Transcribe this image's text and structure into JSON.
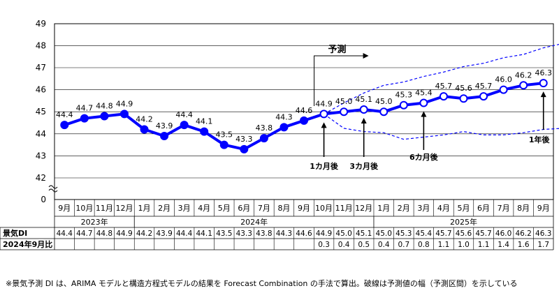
{
  "chart_data": {
    "type": "line",
    "title": "",
    "xlabel": "",
    "ylabel": "",
    "ylim": [
      42,
      49
    ],
    "y_break_label": "0",
    "yticks": [
      42,
      43,
      44,
      45,
      46,
      47,
      48,
      49
    ],
    "grid": true,
    "months": [
      "9月",
      "10月",
      "11月",
      "12月",
      "1月",
      "2月",
      "3月",
      "4月",
      "5月",
      "6月",
      "7月",
      "8月",
      "9月",
      "10月",
      "11月",
      "12月",
      "1月",
      "2月",
      "3月",
      "4月",
      "5月",
      "6月",
      "7月",
      "8月",
      "9月"
    ],
    "year_groups": [
      {
        "label": "2023年",
        "count": 4
      },
      {
        "label": "2024年",
        "count": 12
      },
      {
        "label": "2025年",
        "count": 9
      }
    ],
    "series": [
      {
        "name": "景気DI",
        "values": [
          44.4,
          44.7,
          44.8,
          44.9,
          44.2,
          43.9,
          44.4,
          44.1,
          43.5,
          43.3,
          43.8,
          44.3,
          44.6,
          44.9,
          45.0,
          45.1,
          45.0,
          45.3,
          45.4,
          45.7,
          45.6,
          45.7,
          46.0,
          46.2,
          46.3
        ],
        "forecast_start_index": 13
      }
    ],
    "interval_upper": [
      44.9,
      45.4,
      45.85,
      46.2,
      46.35,
      46.6,
      46.8,
      47.05,
      47.2,
      47.45,
      47.6,
      47.9,
      48.1,
      48.4
    ],
    "interval_lower": [
      44.9,
      44.25,
      44.1,
      44.05,
      43.75,
      43.85,
      43.95,
      44.1,
      43.95,
      43.95,
      44.05,
      44.2,
      44.25,
      44.3
    ],
    "point_labels": [
      "44.4",
      "44.7",
      "44.8",
      "44.9",
      "44.2",
      "43.9",
      "44.4",
      "44.1",
      "43.5",
      "43.3",
      "43.8",
      "44.3",
      "44.6",
      "44.9",
      "45.0",
      "45.1",
      "45.0",
      "45.3",
      "45.4",
      "45.7",
      "45.6",
      "45.7",
      "46.0",
      "46.2",
      "46.3"
    ],
    "annotations": {
      "forecast_label": "予測",
      "horizons": [
        {
          "label": "1カ月後",
          "index": 13
        },
        {
          "label": "3カ月後",
          "index": 15
        },
        {
          "label": "6カ月後",
          "index": 18
        },
        {
          "label": "1年後",
          "index": 24
        }
      ]
    },
    "table": {
      "row1_header": "景気DI",
      "row1_values": [
        "44.4",
        "44.7",
        "44.8",
        "44.9",
        "44.2",
        "43.9",
        "44.4",
        "44.1",
        "43.5",
        "43.3",
        "43.8",
        "44.3",
        "44.6",
        "44.9",
        "45.0",
        "45.1",
        "45.0",
        "45.3",
        "45.4",
        "45.7",
        "45.6",
        "45.7",
        "46.0",
        "46.2",
        "46.3"
      ],
      "row2_header": "2024年9月比",
      "row2_values": [
        "",
        "",
        "",
        "",
        "",
        "",
        "",
        "",
        "",
        "",
        "",
        "",
        "",
        "0.3",
        "0.4",
        "0.5",
        "0.4",
        "0.7",
        "0.8",
        "1.1",
        "1.0",
        "1.1",
        "1.4",
        "1.6",
        "1.7"
      ]
    },
    "line_color": "#0000ff",
    "interval_color": "#0000ff"
  },
  "footnote": "※景気予測 DI は、ARIMA モデルと構造方程式モデルの結果を Forecast Combination の手法で算出。破線は予測値の幅（予測区間）を示している"
}
